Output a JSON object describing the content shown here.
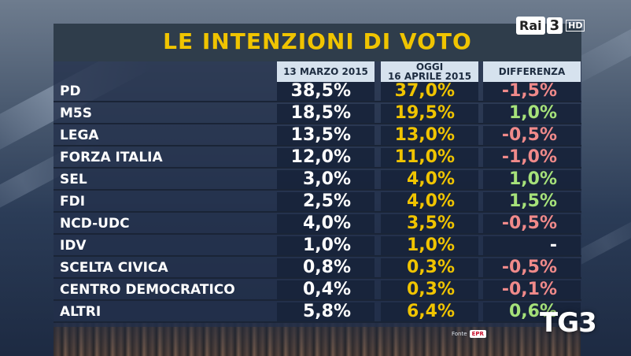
{
  "channel": {
    "logo_text": "Rai",
    "logo_number": "3",
    "hd_label": "HD"
  },
  "news_logo": "TG3",
  "title": "LE INTENZIONI DI VOTO",
  "columns": {
    "col1": "13 MARZO 2015",
    "col2_line1": "OGGI",
    "col2_line2": "16 APRILE 2015",
    "col3": "DIFFERENZA"
  },
  "rows": [
    {
      "party": "PD",
      "march": "38,5%",
      "april": "37,0%",
      "diff": "-1,5%",
      "diff_sign": "neg"
    },
    {
      "party": "M5S",
      "march": "18,5%",
      "april": "19,5%",
      "diff": "1,0%",
      "diff_sign": "pos"
    },
    {
      "party": "LEGA",
      "march": "13,5%",
      "april": "13,0%",
      "diff": "-0,5%",
      "diff_sign": "neg"
    },
    {
      "party": "FORZA ITALIA",
      "march": "12,0%",
      "april": "11,0%",
      "diff": "-1,0%",
      "diff_sign": "neg"
    },
    {
      "party": "SEL",
      "march": "3,0%",
      "april": "4,0%",
      "diff": "1,0%",
      "diff_sign": "pos"
    },
    {
      "party": "FDI",
      "march": "2,5%",
      "april": "4,0%",
      "diff": "1,5%",
      "diff_sign": "pos"
    },
    {
      "party": "NCD-UDC",
      "march": "4,0%",
      "april": "3,5%",
      "diff": "-0,5%",
      "diff_sign": "neg"
    },
    {
      "party": "IDV",
      "march": "1,0%",
      "april": "1,0%",
      "diff": "-",
      "diff_sign": "nil"
    },
    {
      "party": "SCELTA CIVICA",
      "march": "0,8%",
      "april": "0,3%",
      "diff": "-0,5%",
      "diff_sign": "neg"
    },
    {
      "party": "CENTRO DEMOCRATICO",
      "march": "0,4%",
      "april": "0,3%",
      "diff": "-0,1%",
      "diff_sign": "neg"
    },
    {
      "party": "ALTRI",
      "march": "5,8%",
      "april": "6,4%",
      "diff": "0,6%",
      "diff_sign": "pos"
    }
  ],
  "source": {
    "label": "Fonte",
    "name": "EPR"
  },
  "colors": {
    "title": "#f0c400",
    "negative": "#f08a8a",
    "positive": "#a6e27a",
    "april": "#f0c400"
  }
}
